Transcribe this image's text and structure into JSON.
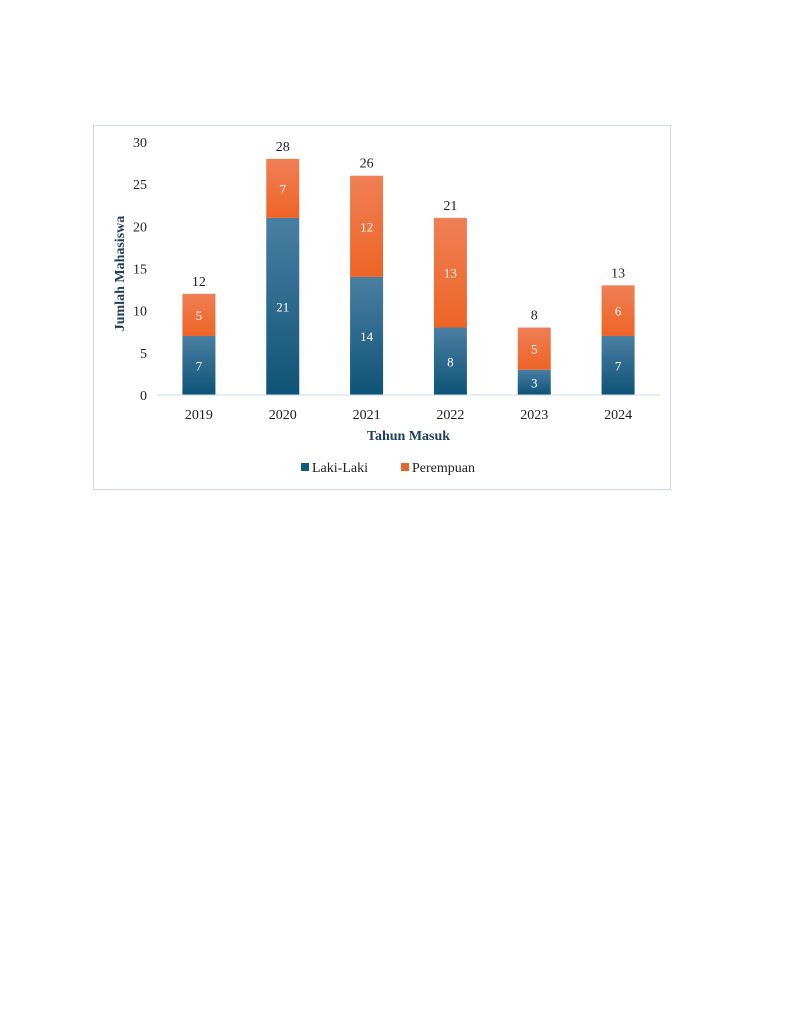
{
  "chart_data": {
    "type": "bar",
    "stacked": true,
    "categories": [
      "2019",
      "2020",
      "2021",
      "2022",
      "2023",
      "2024"
    ],
    "series": [
      {
        "name": "Laki-Laki",
        "values": [
          7,
          21,
          14,
          8,
          3,
          7
        ],
        "color": "#115b7d"
      },
      {
        "name": "Perempuan",
        "values": [
          5,
          7,
          12,
          13,
          5,
          6
        ],
        "color": "#e9642b"
      }
    ],
    "totals": [
      12,
      28,
      26,
      21,
      8,
      13
    ],
    "title": "",
    "xlabel": "Tahun Masuk",
    "ylabel": "Jumlah Mahasiswa",
    "ylim": [
      0,
      30
    ],
    "yticks": [
      0,
      5,
      10,
      15,
      20,
      25,
      30
    ],
    "grid": false,
    "legend_position": "bottom"
  }
}
